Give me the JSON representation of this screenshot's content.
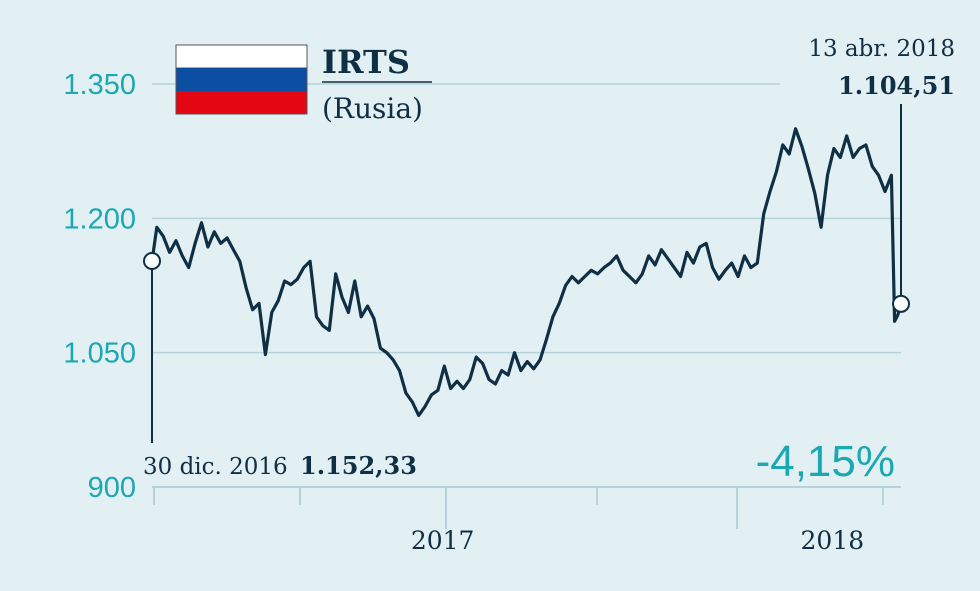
{
  "chart_data": {
    "type": "line",
    "title": "IRTS",
    "subtitle": "(Rusia)",
    "country_flag": "russia-flag",
    "colors": {
      "background": "#e3f0f3",
      "line": "#0f2f45",
      "grid": "#b5d3d8",
      "tick": "#1aa8b3"
    },
    "ylim": [
      900,
      1350
    ],
    "yticks": [
      900,
      1050,
      1200,
      1350
    ],
    "ytick_labels": [
      "900",
      "1.050",
      "1.200",
      "1.350"
    ],
    "xlim": [
      "2016-12-30",
      "2018-04-13"
    ],
    "xtick_labels": [
      {
        "label": "2017",
        "date": "2017-06-30"
      },
      {
        "label": "2018",
        "date": "2018-03-01"
      }
    ],
    "grid": true,
    "start": {
      "date_label": "30 dic. 2016",
      "value_label": "1.152,33",
      "date": "2016-12-30",
      "value": 1152.33
    },
    "end": {
      "date_label": "13 abr. 2018",
      "value_label": "1.104,51",
      "date": "2018-04-13",
      "value": 1104.51
    },
    "change_label": "-4,15%",
    "series": [
      {
        "x": [
          "2016-12-30",
          "2017-01-02",
          "2017-01-06",
          "2017-01-10",
          "2017-01-14",
          "2017-01-18",
          "2017-01-22",
          "2017-01-26",
          "2017-01-30",
          "2017-02-03",
          "2017-02-07",
          "2017-02-11",
          "2017-02-15",
          "2017-02-19",
          "2017-02-23",
          "2017-02-27",
          "2017-03-03",
          "2017-03-07",
          "2017-03-11",
          "2017-03-15",
          "2017-03-19",
          "2017-03-23",
          "2017-03-27",
          "2017-03-31",
          "2017-04-04",
          "2017-04-08",
          "2017-04-12",
          "2017-04-16",
          "2017-04-20",
          "2017-04-24",
          "2017-04-28",
          "2017-05-02",
          "2017-05-06",
          "2017-05-10",
          "2017-05-14",
          "2017-05-18",
          "2017-05-22",
          "2017-05-26",
          "2017-05-30",
          "2017-06-03",
          "2017-06-07",
          "2017-06-11",
          "2017-06-15",
          "2017-06-19",
          "2017-06-23",
          "2017-06-27",
          "2017-07-01",
          "2017-07-05",
          "2017-07-09",
          "2017-07-13",
          "2017-07-17",
          "2017-07-21",
          "2017-07-25",
          "2017-07-29",
          "2017-08-02",
          "2017-08-06",
          "2017-08-10",
          "2017-08-14",
          "2017-08-18",
          "2017-08-22",
          "2017-08-26",
          "2017-08-30",
          "2017-09-03",
          "2017-09-07",
          "2017-09-11",
          "2017-09-15",
          "2017-09-19",
          "2017-09-23",
          "2017-09-27",
          "2017-10-01",
          "2017-10-05",
          "2017-10-09",
          "2017-10-13",
          "2017-10-17",
          "2017-10-21",
          "2017-10-25",
          "2017-10-29",
          "2017-11-02",
          "2017-11-06",
          "2017-11-10",
          "2017-11-14",
          "2017-11-18",
          "2017-11-22",
          "2017-11-26",
          "2017-11-30",
          "2017-12-04",
          "2017-12-08",
          "2017-12-12",
          "2017-12-16",
          "2017-12-20",
          "2017-12-24",
          "2017-12-28",
          "2018-01-01",
          "2018-01-05",
          "2018-01-09",
          "2018-01-13",
          "2018-01-17",
          "2018-01-21",
          "2018-01-25",
          "2018-01-29",
          "2018-02-02",
          "2018-02-06",
          "2018-02-10",
          "2018-02-14",
          "2018-02-18",
          "2018-02-22",
          "2018-02-26",
          "2018-03-02",
          "2018-03-06",
          "2018-03-10",
          "2018-03-14",
          "2018-03-18",
          "2018-03-22",
          "2018-03-26",
          "2018-03-30",
          "2018-04-03",
          "2018-04-07",
          "2018-04-09",
          "2018-04-11",
          "2018-04-13"
        ],
        "values": [
          1152,
          1190,
          1180,
          1162,
          1175,
          1158,
          1145,
          1172,
          1195,
          1168,
          1185,
          1172,
          1178,
          1165,
          1152,
          1122,
          1098,
          1105,
          1048,
          1095,
          1108,
          1130,
          1126,
          1132,
          1145,
          1152,
          1090,
          1080,
          1075,
          1138,
          1112,
          1095,
          1130,
          1090,
          1102,
          1088,
          1055,
          1050,
          1042,
          1030,
          1005,
          995,
          980,
          990,
          1003,
          1008,
          1035,
          1010,
          1018,
          1010,
          1020,
          1045,
          1038,
          1020,
          1015,
          1030,
          1025,
          1050,
          1030,
          1040,
          1032,
          1042,
          1065,
          1090,
          1105,
          1125,
          1135,
          1128,
          1135,
          1142,
          1138,
          1145,
          1150,
          1158,
          1142,
          1135,
          1128,
          1138,
          1158,
          1148,
          1165,
          1155,
          1145,
          1135,
          1162,
          1150,
          1168,
          1172,
          1145,
          1132,
          1142,
          1150,
          1135,
          1158,
          1145,
          1150,
          1205,
          1230,
          1252,
          1282,
          1272,
          1300,
          1280,
          1255,
          1228,
          1190,
          1248,
          1278,
          1268,
          1292,
          1268,
          1278,
          1282,
          1258,
          1248,
          1230,
          1248,
          1085,
          1092,
          1104.51
        ]
      }
    ]
  }
}
